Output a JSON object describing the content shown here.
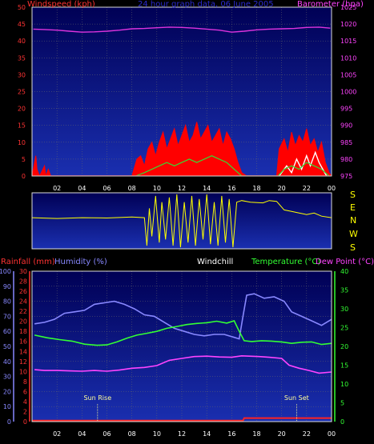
{
  "colors": {
    "background": "#000000",
    "plot_fill_top": "#000055",
    "plot_fill_bottom": "#1a2fb0",
    "grid": "#6a6a6a",
    "wind_speed": "#ff0000",
    "wind_gust": "#ffffff",
    "wind_avg": "#33dd33",
    "barometer": "#dd33dd",
    "direction": "#ffff00",
    "rainfall": "#ff2222",
    "humidity": "#8888ff",
    "windchill": "#ffffff",
    "temperature": "#33ff33",
    "dewpoint": "#ff44ff",
    "axis_red": "#ff3333",
    "axis_magenta": "#ff44ff",
    "axis_blue": "#8888ff",
    "axis_green": "#33ff33",
    "sun_marker": "#ffff99"
  },
  "chart_data": [
    {
      "id": "wind_baro",
      "type": "line",
      "title": "24 hour graph data, 06 June 2005",
      "ylabel_left": "Windspeed (kph)",
      "ylabel_right": "Barometer (hpa)",
      "x_ticks": [
        "02",
        "04",
        "06",
        "08",
        "10",
        "12",
        "14",
        "16",
        "18",
        "20",
        "22",
        "00"
      ],
      "xlim": [
        0,
        24
      ],
      "ylim_left": [
        0,
        50
      ],
      "yticks_left": [
        "0",
        "5",
        "10",
        "15",
        "20",
        "25",
        "30",
        "35",
        "40",
        "45",
        "50"
      ],
      "ylim_right": [
        975,
        1025
      ],
      "yticks_right": [
        "975",
        "980",
        "985",
        "990",
        "995",
        "1000",
        "1005",
        "1010",
        "1015",
        "1020",
        "1025"
      ],
      "barometer_hpa": [
        [
          0.1,
          1018.5
        ],
        [
          1,
          1018.4
        ],
        [
          2,
          1018.2
        ],
        [
          3,
          1017.9
        ],
        [
          4,
          1017.6
        ],
        [
          5,
          1017.7
        ],
        [
          6,
          1017.9
        ],
        [
          7,
          1018.2
        ],
        [
          8,
          1018.6
        ],
        [
          9,
          1018.7
        ],
        [
          10,
          1018.9
        ],
        [
          11,
          1019.1
        ],
        [
          12,
          1019.0
        ],
        [
          13,
          1018.8
        ],
        [
          14,
          1018.5
        ],
        [
          15,
          1018.2
        ],
        [
          16,
          1017.6
        ],
        [
          17,
          1017.9
        ],
        [
          18,
          1018.3
        ],
        [
          19,
          1018.5
        ],
        [
          20,
          1018.6
        ],
        [
          21,
          1018.7
        ],
        [
          22,
          1019.0
        ],
        [
          23,
          1019.1
        ],
        [
          23.9,
          1018.8
        ]
      ],
      "wind_speed_kph": [
        [
          0.0,
          0
        ],
        [
          0.3,
          6
        ],
        [
          0.4,
          2
        ],
        [
          0.6,
          0
        ],
        [
          1.0,
          3
        ],
        [
          1.1,
          0
        ],
        [
          1.3,
          2
        ],
        [
          1.5,
          0
        ],
        [
          3,
          0
        ],
        [
          8,
          0
        ],
        [
          8.4,
          5
        ],
        [
          8.7,
          6
        ],
        [
          9.0,
          3
        ],
        [
          9.3,
          8
        ],
        [
          9.6,
          10
        ],
        [
          9.9,
          6
        ],
        [
          10.2,
          10
        ],
        [
          10.5,
          13
        ],
        [
          10.8,
          8
        ],
        [
          11.1,
          11
        ],
        [
          11.4,
          14
        ],
        [
          11.7,
          9
        ],
        [
          12.0,
          12
        ],
        [
          12.3,
          15
        ],
        [
          12.6,
          10
        ],
        [
          12.9,
          12
        ],
        [
          13.2,
          16
        ],
        [
          13.5,
          11
        ],
        [
          13.8,
          13
        ],
        [
          14.1,
          15
        ],
        [
          14.4,
          10
        ],
        [
          14.7,
          12
        ],
        [
          15.0,
          14
        ],
        [
          15.3,
          9
        ],
        [
          15.6,
          13
        ],
        [
          15.9,
          11
        ],
        [
          16.2,
          8
        ],
        [
          16.5,
          4
        ],
        [
          16.8,
          1
        ],
        [
          17.2,
          0
        ],
        [
          19.6,
          0
        ],
        [
          19.8,
          8
        ],
        [
          20.2,
          11
        ],
        [
          20.5,
          7
        ],
        [
          20.8,
          13
        ],
        [
          21.1,
          9
        ],
        [
          21.4,
          12
        ],
        [
          21.7,
          10
        ],
        [
          22.0,
          14
        ],
        [
          22.3,
          9
        ],
        [
          22.6,
          11
        ],
        [
          22.9,
          7
        ],
        [
          23.2,
          10
        ],
        [
          23.5,
          4
        ],
        [
          23.8,
          1
        ],
        [
          24.0,
          0
        ]
      ],
      "wind_gust_kph": [
        [
          19.8,
          0
        ],
        [
          20.4,
          3
        ],
        [
          20.8,
          1
        ],
        [
          21.2,
          5
        ],
        [
          21.6,
          2
        ],
        [
          22.0,
          6
        ],
        [
          22.3,
          3
        ],
        [
          22.7,
          7
        ],
        [
          23.0,
          4
        ],
        [
          23.3,
          2
        ],
        [
          23.6,
          0
        ]
      ],
      "wind_avg_kph": [
        [
          8.3,
          0
        ],
        [
          9.0,
          1
        ],
        [
          9.6,
          2
        ],
        [
          10.2,
          3
        ],
        [
          10.8,
          4
        ],
        [
          11.4,
          3
        ],
        [
          12.0,
          4
        ],
        [
          12.6,
          5
        ],
        [
          13.2,
          4
        ],
        [
          13.8,
          5
        ],
        [
          14.4,
          6
        ],
        [
          15.0,
          5
        ],
        [
          15.6,
          4
        ],
        [
          16.2,
          2
        ],
        [
          16.8,
          0
        ],
        [
          19.7,
          0
        ],
        [
          20.2,
          2
        ],
        [
          20.8,
          3
        ],
        [
          21.4,
          2
        ],
        [
          22.0,
          4
        ],
        [
          22.6,
          3
        ],
        [
          23.2,
          2
        ],
        [
          23.8,
          0
        ]
      ]
    },
    {
      "id": "direction",
      "type": "line",
      "compass_labels": [
        "S",
        "E",
        "N",
        "W",
        "S"
      ],
      "series": [
        {
          "values": [
            [
              0.0,
              200
            ],
            [
              2.0,
              195
            ],
            [
              4.0,
              200
            ],
            [
              6.0,
              198
            ],
            [
              8.0,
              204
            ],
            [
              9.0,
              200
            ],
            [
              9.2,
              20
            ],
            [
              9.4,
              260
            ],
            [
              9.6,
              80
            ],
            [
              9.9,
              340
            ],
            [
              10.2,
              40
            ],
            [
              10.4,
              300
            ],
            [
              10.7,
              60
            ],
            [
              11.0,
              330
            ],
            [
              11.3,
              20
            ],
            [
              11.6,
              350
            ],
            [
              11.9,
              10
            ],
            [
              12.2,
              300
            ],
            [
              12.5,
              40
            ],
            [
              12.8,
              340
            ],
            [
              13.1,
              20
            ],
            [
              13.4,
              320
            ],
            [
              13.7,
              60
            ],
            [
              14.0,
              350
            ],
            [
              14.3,
              30
            ],
            [
              14.6,
              300
            ],
            [
              14.9,
              20
            ],
            [
              15.2,
              340
            ],
            [
              15.5,
              40
            ],
            [
              15.8,
              320
            ],
            [
              16.1,
              10
            ],
            [
              16.4,
              300
            ],
            [
              16.8,
              310
            ],
            [
              17.5,
              300
            ],
            [
              18.5,
              295
            ],
            [
              19.0,
              310
            ],
            [
              19.6,
              305
            ],
            [
              20.2,
              250
            ],
            [
              20.8,
              240
            ],
            [
              21.4,
              230
            ],
            [
              22.0,
              220
            ],
            [
              22.6,
              230
            ],
            [
              23.2,
              210
            ],
            [
              24.0,
              200
            ]
          ]
        }
      ]
    },
    {
      "id": "temp_hum",
      "type": "line",
      "label_rainfall": "Rainfall (mm)",
      "label_humidity": "Humidity (%)",
      "label_windchill": "Windchill",
      "label_temperature": "Temperature (°C)",
      "label_dewpoint": "Dew Point (°C)",
      "x_ticks": [
        "02",
        "04",
        "06",
        "08",
        "10",
        "12",
        "14",
        "16",
        "18",
        "20",
        "22",
        "00"
      ],
      "xlim": [
        0,
        24
      ],
      "humidity_axis": {
        "ylim": [
          0,
          100
        ],
        "ticks": [
          "0",
          "10",
          "20",
          "30",
          "40",
          "50",
          "60",
          "70",
          "80",
          "90",
          "100"
        ]
      },
      "rainfall_axis": {
        "ylim": [
          0,
          30
        ],
        "ticks": [
          "0",
          "2",
          "4",
          "6",
          "8",
          "10",
          "12",
          "14",
          "16",
          "18",
          "20",
          "22",
          "24",
          "26",
          "28",
          "30"
        ]
      },
      "temperature_axis": {
        "ylim": [
          0,
          40
        ],
        "ticks": [
          "0",
          "5",
          "10",
          "15",
          "20",
          "25",
          "30",
          "35",
          "40"
        ]
      },
      "annotations": [
        {
          "label": "Sun Rise",
          "x": 5.25
        },
        {
          "label": "Sun Set",
          "x": 21.2
        }
      ],
      "humidity_pct": [
        [
          0.2,
          65
        ],
        [
          1.0,
          66
        ],
        [
          1.8,
          68
        ],
        [
          2.6,
          72
        ],
        [
          3.4,
          73
        ],
        [
          4.2,
          74
        ],
        [
          5.0,
          78
        ],
        [
          5.8,
          79
        ],
        [
          6.6,
          80
        ],
        [
          7.4,
          78
        ],
        [
          8.2,
          75
        ],
        [
          9.0,
          71
        ],
        [
          9.8,
          70
        ],
        [
          10.6,
          66
        ],
        [
          11.4,
          62
        ],
        [
          12.2,
          60
        ],
        [
          13.0,
          58
        ],
        [
          13.8,
          57
        ],
        [
          14.6,
          58
        ],
        [
          15.4,
          58
        ],
        [
          16.2,
          56
        ],
        [
          16.6,
          55
        ],
        [
          16.9,
          70
        ],
        [
          17.2,
          84
        ],
        [
          17.8,
          85
        ],
        [
          18.6,
          82
        ],
        [
          19.4,
          83
        ],
        [
          20.2,
          80
        ],
        [
          20.8,
          73
        ],
        [
          21.6,
          70
        ],
        [
          22.4,
          67
        ],
        [
          23.2,
          64
        ],
        [
          24.0,
          68
        ]
      ],
      "temperature_c": [
        [
          0.2,
          23
        ],
        [
          1.2,
          22.3
        ],
        [
          2.2,
          21.8
        ],
        [
          3.2,
          21.4
        ],
        [
          4.2,
          20.6
        ],
        [
          5.2,
          20.3
        ],
        [
          6.0,
          20.4
        ],
        [
          6.8,
          21.2
        ],
        [
          7.6,
          22.2
        ],
        [
          8.4,
          23.0
        ],
        [
          9.2,
          23.5
        ],
        [
          10.0,
          24.0
        ],
        [
          10.8,
          24.8
        ],
        [
          11.6,
          25.3
        ],
        [
          12.4,
          25.8
        ],
        [
          13.2,
          26.1
        ],
        [
          14.0,
          26.3
        ],
        [
          14.8,
          26.7
        ],
        [
          15.6,
          26.2
        ],
        [
          16.2,
          26.8
        ],
        [
          16.6,
          24.0
        ],
        [
          17.0,
          21.5
        ],
        [
          17.6,
          21.3
        ],
        [
          18.4,
          21.5
        ],
        [
          19.2,
          21.4
        ],
        [
          20.0,
          21.2
        ],
        [
          20.8,
          20.8
        ],
        [
          21.6,
          21.1
        ],
        [
          22.4,
          21.2
        ],
        [
          23.2,
          20.5
        ],
        [
          24.0,
          20.8
        ]
      ],
      "dewpoint_c": [
        [
          0.2,
          13.8
        ],
        [
          1.0,
          13.6
        ],
        [
          2.0,
          13.6
        ],
        [
          3.0,
          13.5
        ],
        [
          4.0,
          13.4
        ],
        [
          5.0,
          13.6
        ],
        [
          6.0,
          13.4
        ],
        [
          7.0,
          13.7
        ],
        [
          8.0,
          14.2
        ],
        [
          9.0,
          14.4
        ],
        [
          10.0,
          14.9
        ],
        [
          11.0,
          16.3
        ],
        [
          12.0,
          16.8
        ],
        [
          13.0,
          17.3
        ],
        [
          14.0,
          17.4
        ],
        [
          15.0,
          17.2
        ],
        [
          16.0,
          17.1
        ],
        [
          16.8,
          17.5
        ],
        [
          17.4,
          17.4
        ],
        [
          18.2,
          17.3
        ],
        [
          19.0,
          17.1
        ],
        [
          20.0,
          16.8
        ],
        [
          20.6,
          15.0
        ],
        [
          21.4,
          14.2
        ],
        [
          22.2,
          13.6
        ],
        [
          23.0,
          12.9
        ],
        [
          24.0,
          13.2
        ]
      ],
      "rainfall_mm": [
        [
          0.0,
          0.2
        ],
        [
          16.9,
          0.2
        ],
        [
          17.0,
          0.7
        ],
        [
          24.0,
          0.7
        ]
      ]
    }
  ]
}
